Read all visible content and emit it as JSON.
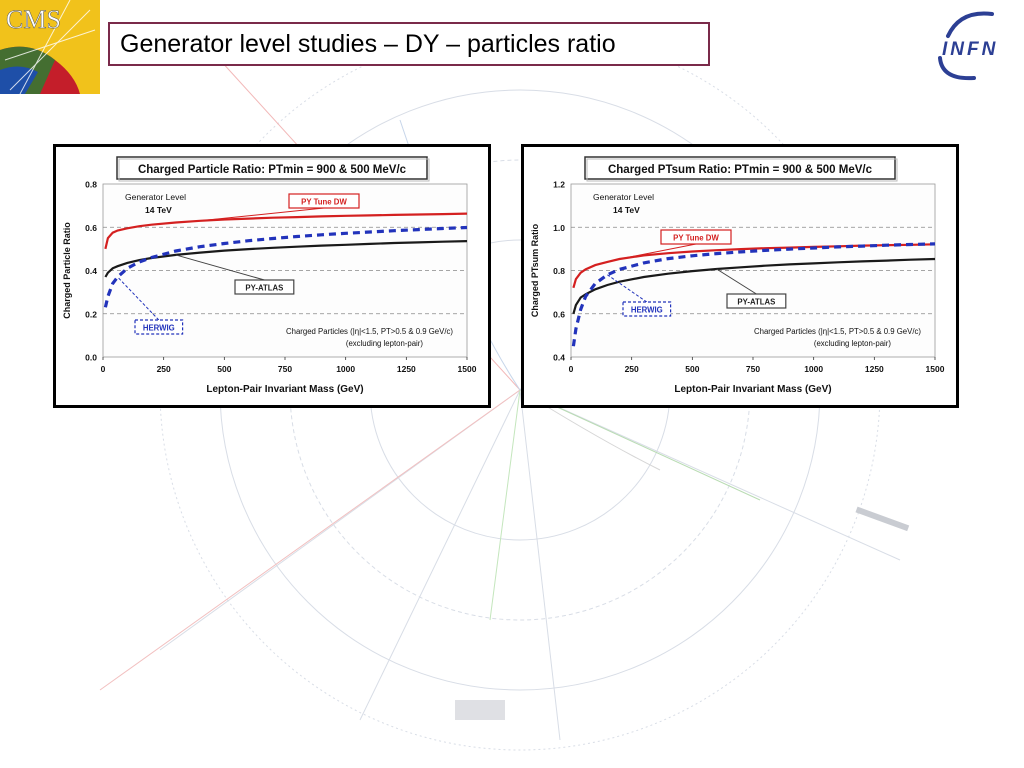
{
  "slide": {
    "title": "Generator level studies – DY – particles ratio",
    "logo_left": "CMS",
    "logo_right": "INFN",
    "title_border_color": "#7a2a4a"
  },
  "chart_data": [
    {
      "type": "line",
      "title": "Charged Particle Ratio: PTmin = 900 & 500 MeV/c",
      "xlabel": "Lepton-Pair Invariant Mass (GeV)",
      "ylabel": "Charged Particle Ratio",
      "xlim": [
        0,
        1500
      ],
      "ylim": [
        0.0,
        0.8
      ],
      "x_ticks": [
        "0",
        "250",
        "500",
        "750",
        "1000",
        "1250",
        "1500"
      ],
      "y_ticks": [
        "0.0",
        "0.2",
        "0.4",
        "0.6",
        "0.8"
      ],
      "grid": "horizontal dashed",
      "annotations": {
        "generator": "Generator Level",
        "energy": "14 TeV",
        "note_line1": "Charged Particles (|η|<1.5, PT>0.5 & 0.9 GeV/c)",
        "note_line2": "(excluding lepton-pair)"
      },
      "series": [
        {
          "name": "PY Tune DW",
          "color": "#d42020",
          "style": "solid",
          "x": [
            10,
            20,
            40,
            60,
            100,
            150,
            200,
            300,
            400,
            500,
            600,
            700,
            800,
            900,
            1000,
            1100,
            1200,
            1300,
            1400,
            1500
          ],
          "values": [
            0.5,
            0.55,
            0.575,
            0.585,
            0.595,
            0.605,
            0.612,
            0.622,
            0.63,
            0.636,
            0.64,
            0.644,
            0.647,
            0.65,
            0.653,
            0.655,
            0.657,
            0.659,
            0.661,
            0.663
          ]
        },
        {
          "name": "PY-ATLAS",
          "color": "#1a1a1a",
          "style": "solid",
          "x": [
            10,
            20,
            40,
            60,
            100,
            150,
            200,
            300,
            400,
            500,
            600,
            700,
            800,
            900,
            1000,
            1100,
            1200,
            1300,
            1400,
            1500
          ],
          "values": [
            0.37,
            0.39,
            0.41,
            0.42,
            0.435,
            0.448,
            0.458,
            0.472,
            0.483,
            0.492,
            0.499,
            0.505,
            0.51,
            0.515,
            0.519,
            0.523,
            0.527,
            0.53,
            0.533,
            0.536
          ]
        },
        {
          "name": "HERWIG",
          "color": "#2233bb",
          "style": "dashed",
          "x": [
            10,
            20,
            40,
            60,
            100,
            150,
            200,
            300,
            400,
            500,
            600,
            700,
            800,
            900,
            1000,
            1100,
            1200,
            1300,
            1400,
            1500
          ],
          "values": [
            0.23,
            0.28,
            0.34,
            0.37,
            0.41,
            0.44,
            0.46,
            0.49,
            0.51,
            0.525,
            0.538,
            0.548,
            0.557,
            0.565,
            0.572,
            0.578,
            0.584,
            0.589,
            0.594,
            0.599
          ]
        }
      ]
    },
    {
      "type": "line",
      "title": "Charged PTsum Ratio: PTmin = 900 & 500 MeV/c",
      "xlabel": "Lepton-Pair Invariant Mass (GeV)",
      "ylabel": "Charged PTsum Ratio",
      "xlim": [
        0,
        1500
      ],
      "ylim": [
        0.4,
        1.2
      ],
      "x_ticks": [
        "0",
        "250",
        "500",
        "750",
        "1000",
        "1250",
        "1500"
      ],
      "y_ticks": [
        "0.4",
        "0.6",
        "0.8",
        "1.0",
        "1.2"
      ],
      "grid": "horizontal dashed",
      "annotations": {
        "generator": "Generator Level",
        "energy": "14 TeV",
        "note_line1": "Charged Particles (|η|<1.5, PT>0.5 & 0.9 GeV/c)",
        "note_line2": "(excluding lepton-pair)"
      },
      "series": [
        {
          "name": "PY Tune DW",
          "color": "#d42020",
          "style": "solid",
          "x": [
            10,
            20,
            40,
            60,
            100,
            150,
            200,
            300,
            400,
            500,
            600,
            700,
            800,
            900,
            1000,
            1100,
            1200,
            1300,
            1400,
            1500
          ],
          "values": [
            0.72,
            0.76,
            0.79,
            0.805,
            0.825,
            0.84,
            0.853,
            0.87,
            0.88,
            0.888,
            0.894,
            0.899,
            0.903,
            0.906,
            0.909,
            0.912,
            0.915,
            0.917,
            0.919,
            0.921
          ]
        },
        {
          "name": "PY-ATLAS",
          "color": "#1a1a1a",
          "style": "solid",
          "x": [
            10,
            20,
            40,
            60,
            100,
            150,
            200,
            300,
            400,
            500,
            600,
            700,
            800,
            900,
            1000,
            1100,
            1200,
            1300,
            1400,
            1500
          ],
          "values": [
            0.6,
            0.64,
            0.675,
            0.69,
            0.713,
            0.733,
            0.748,
            0.77,
            0.785,
            0.797,
            0.807,
            0.815,
            0.822,
            0.828,
            0.833,
            0.838,
            0.842,
            0.846,
            0.85,
            0.853
          ]
        },
        {
          "name": "HERWIG",
          "color": "#2233bb",
          "style": "dashed",
          "x": [
            10,
            20,
            40,
            60,
            100,
            150,
            200,
            300,
            400,
            500,
            600,
            700,
            800,
            900,
            1000,
            1100,
            1200,
            1300,
            1400,
            1500
          ],
          "values": [
            0.45,
            0.53,
            0.62,
            0.68,
            0.74,
            0.78,
            0.805,
            0.835,
            0.855,
            0.868,
            0.878,
            0.886,
            0.893,
            0.899,
            0.904,
            0.909,
            0.913,
            0.917,
            0.92,
            0.923
          ]
        }
      ]
    }
  ]
}
